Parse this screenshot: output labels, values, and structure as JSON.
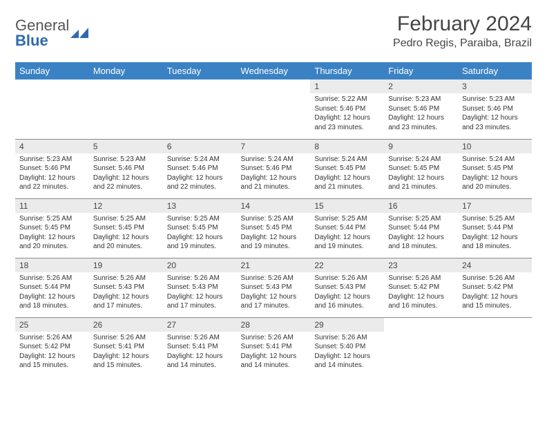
{
  "logo": {
    "line1": "General",
    "line2": "Blue",
    "icon_name": "logo-icon",
    "colors": {
      "text1": "#555555",
      "text2": "#2f6aad",
      "icon": "#2f6aad"
    }
  },
  "title": {
    "month": "February 2024",
    "location": "Pedro Regis, Paraiba, Brazil"
  },
  "styling": {
    "header_bg": "#3b82c4",
    "header_text": "#ffffff",
    "daynum_bg": "#ebebeb",
    "border_color": "#888888",
    "body_text": "#333333",
    "page_bg": "#ffffff",
    "font_family": "Arial",
    "th_fontsize": 13,
    "cell_fontsize": 10,
    "title_fontsize": 30,
    "location_fontsize": 16
  },
  "weekdays": [
    "Sunday",
    "Monday",
    "Tuesday",
    "Wednesday",
    "Thursday",
    "Friday",
    "Saturday"
  ],
  "first_weekday_index": 4,
  "days_in_month": 29,
  "days": {
    "1": {
      "sunrise": "5:22 AM",
      "sunset": "5:46 PM",
      "daylight": "12 hours and 23 minutes."
    },
    "2": {
      "sunrise": "5:23 AM",
      "sunset": "5:46 PM",
      "daylight": "12 hours and 23 minutes."
    },
    "3": {
      "sunrise": "5:23 AM",
      "sunset": "5:46 PM",
      "daylight": "12 hours and 23 minutes."
    },
    "4": {
      "sunrise": "5:23 AM",
      "sunset": "5:46 PM",
      "daylight": "12 hours and 22 minutes."
    },
    "5": {
      "sunrise": "5:23 AM",
      "sunset": "5:46 PM",
      "daylight": "12 hours and 22 minutes."
    },
    "6": {
      "sunrise": "5:24 AM",
      "sunset": "5:46 PM",
      "daylight": "12 hours and 22 minutes."
    },
    "7": {
      "sunrise": "5:24 AM",
      "sunset": "5:46 PM",
      "daylight": "12 hours and 21 minutes."
    },
    "8": {
      "sunrise": "5:24 AM",
      "sunset": "5:45 PM",
      "daylight": "12 hours and 21 minutes."
    },
    "9": {
      "sunrise": "5:24 AM",
      "sunset": "5:45 PM",
      "daylight": "12 hours and 21 minutes."
    },
    "10": {
      "sunrise": "5:24 AM",
      "sunset": "5:45 PM",
      "daylight": "12 hours and 20 minutes."
    },
    "11": {
      "sunrise": "5:25 AM",
      "sunset": "5:45 PM",
      "daylight": "12 hours and 20 minutes."
    },
    "12": {
      "sunrise": "5:25 AM",
      "sunset": "5:45 PM",
      "daylight": "12 hours and 20 minutes."
    },
    "13": {
      "sunrise": "5:25 AM",
      "sunset": "5:45 PM",
      "daylight": "12 hours and 19 minutes."
    },
    "14": {
      "sunrise": "5:25 AM",
      "sunset": "5:45 PM",
      "daylight": "12 hours and 19 minutes."
    },
    "15": {
      "sunrise": "5:25 AM",
      "sunset": "5:44 PM",
      "daylight": "12 hours and 19 minutes."
    },
    "16": {
      "sunrise": "5:25 AM",
      "sunset": "5:44 PM",
      "daylight": "12 hours and 18 minutes."
    },
    "17": {
      "sunrise": "5:25 AM",
      "sunset": "5:44 PM",
      "daylight": "12 hours and 18 minutes."
    },
    "18": {
      "sunrise": "5:26 AM",
      "sunset": "5:44 PM",
      "daylight": "12 hours and 18 minutes."
    },
    "19": {
      "sunrise": "5:26 AM",
      "sunset": "5:43 PM",
      "daylight": "12 hours and 17 minutes."
    },
    "20": {
      "sunrise": "5:26 AM",
      "sunset": "5:43 PM",
      "daylight": "12 hours and 17 minutes."
    },
    "21": {
      "sunrise": "5:26 AM",
      "sunset": "5:43 PM",
      "daylight": "12 hours and 17 minutes."
    },
    "22": {
      "sunrise": "5:26 AM",
      "sunset": "5:43 PM",
      "daylight": "12 hours and 16 minutes."
    },
    "23": {
      "sunrise": "5:26 AM",
      "sunset": "5:42 PM",
      "daylight": "12 hours and 16 minutes."
    },
    "24": {
      "sunrise": "5:26 AM",
      "sunset": "5:42 PM",
      "daylight": "12 hours and 15 minutes."
    },
    "25": {
      "sunrise": "5:26 AM",
      "sunset": "5:42 PM",
      "daylight": "12 hours and 15 minutes."
    },
    "26": {
      "sunrise": "5:26 AM",
      "sunset": "5:41 PM",
      "daylight": "12 hours and 15 minutes."
    },
    "27": {
      "sunrise": "5:26 AM",
      "sunset": "5:41 PM",
      "daylight": "12 hours and 14 minutes."
    },
    "28": {
      "sunrise": "5:26 AM",
      "sunset": "5:41 PM",
      "daylight": "12 hours and 14 minutes."
    },
    "29": {
      "sunrise": "5:26 AM",
      "sunset": "5:40 PM",
      "daylight": "12 hours and 14 minutes."
    }
  },
  "labels": {
    "sunrise_prefix": "Sunrise: ",
    "sunset_prefix": "Sunset: ",
    "daylight_prefix": "Daylight: "
  }
}
